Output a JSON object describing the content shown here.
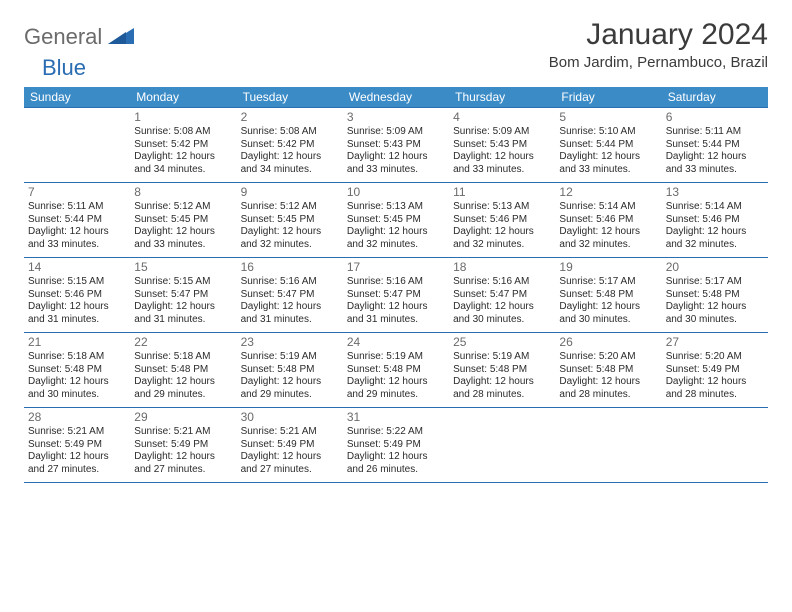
{
  "logo": {
    "text1": "General",
    "text2": "Blue"
  },
  "title": "January 2024",
  "location": "Bom Jardim, Pernambuco, Brazil",
  "colors": {
    "header_bg": "#3b8bc7",
    "header_text": "#ffffff",
    "border": "#2a6db3",
    "body_text": "#2b2b2b",
    "daynum": "#6b6b6b",
    "title": "#3b3b3b",
    "logo_gray": "#6b6b6b",
    "logo_blue": "#2a6db3"
  },
  "weekdays": [
    "Sunday",
    "Monday",
    "Tuesday",
    "Wednesday",
    "Thursday",
    "Friday",
    "Saturday"
  ],
  "weeks": [
    [
      null,
      {
        "n": "1",
        "sr": "Sunrise: 5:08 AM",
        "ss": "Sunset: 5:42 PM",
        "d1": "Daylight: 12 hours",
        "d2": "and 34 minutes."
      },
      {
        "n": "2",
        "sr": "Sunrise: 5:08 AM",
        "ss": "Sunset: 5:42 PM",
        "d1": "Daylight: 12 hours",
        "d2": "and 34 minutes."
      },
      {
        "n": "3",
        "sr": "Sunrise: 5:09 AM",
        "ss": "Sunset: 5:43 PM",
        "d1": "Daylight: 12 hours",
        "d2": "and 33 minutes."
      },
      {
        "n": "4",
        "sr": "Sunrise: 5:09 AM",
        "ss": "Sunset: 5:43 PM",
        "d1": "Daylight: 12 hours",
        "d2": "and 33 minutes."
      },
      {
        "n": "5",
        "sr": "Sunrise: 5:10 AM",
        "ss": "Sunset: 5:44 PM",
        "d1": "Daylight: 12 hours",
        "d2": "and 33 minutes."
      },
      {
        "n": "6",
        "sr": "Sunrise: 5:11 AM",
        "ss": "Sunset: 5:44 PM",
        "d1": "Daylight: 12 hours",
        "d2": "and 33 minutes."
      }
    ],
    [
      {
        "n": "7",
        "sr": "Sunrise: 5:11 AM",
        "ss": "Sunset: 5:44 PM",
        "d1": "Daylight: 12 hours",
        "d2": "and 33 minutes."
      },
      {
        "n": "8",
        "sr": "Sunrise: 5:12 AM",
        "ss": "Sunset: 5:45 PM",
        "d1": "Daylight: 12 hours",
        "d2": "and 33 minutes."
      },
      {
        "n": "9",
        "sr": "Sunrise: 5:12 AM",
        "ss": "Sunset: 5:45 PM",
        "d1": "Daylight: 12 hours",
        "d2": "and 32 minutes."
      },
      {
        "n": "10",
        "sr": "Sunrise: 5:13 AM",
        "ss": "Sunset: 5:45 PM",
        "d1": "Daylight: 12 hours",
        "d2": "and 32 minutes."
      },
      {
        "n": "11",
        "sr": "Sunrise: 5:13 AM",
        "ss": "Sunset: 5:46 PM",
        "d1": "Daylight: 12 hours",
        "d2": "and 32 minutes."
      },
      {
        "n": "12",
        "sr": "Sunrise: 5:14 AM",
        "ss": "Sunset: 5:46 PM",
        "d1": "Daylight: 12 hours",
        "d2": "and 32 minutes."
      },
      {
        "n": "13",
        "sr": "Sunrise: 5:14 AM",
        "ss": "Sunset: 5:46 PM",
        "d1": "Daylight: 12 hours",
        "d2": "and 32 minutes."
      }
    ],
    [
      {
        "n": "14",
        "sr": "Sunrise: 5:15 AM",
        "ss": "Sunset: 5:46 PM",
        "d1": "Daylight: 12 hours",
        "d2": "and 31 minutes."
      },
      {
        "n": "15",
        "sr": "Sunrise: 5:15 AM",
        "ss": "Sunset: 5:47 PM",
        "d1": "Daylight: 12 hours",
        "d2": "and 31 minutes."
      },
      {
        "n": "16",
        "sr": "Sunrise: 5:16 AM",
        "ss": "Sunset: 5:47 PM",
        "d1": "Daylight: 12 hours",
        "d2": "and 31 minutes."
      },
      {
        "n": "17",
        "sr": "Sunrise: 5:16 AM",
        "ss": "Sunset: 5:47 PM",
        "d1": "Daylight: 12 hours",
        "d2": "and 31 minutes."
      },
      {
        "n": "18",
        "sr": "Sunrise: 5:16 AM",
        "ss": "Sunset: 5:47 PM",
        "d1": "Daylight: 12 hours",
        "d2": "and 30 minutes."
      },
      {
        "n": "19",
        "sr": "Sunrise: 5:17 AM",
        "ss": "Sunset: 5:48 PM",
        "d1": "Daylight: 12 hours",
        "d2": "and 30 minutes."
      },
      {
        "n": "20",
        "sr": "Sunrise: 5:17 AM",
        "ss": "Sunset: 5:48 PM",
        "d1": "Daylight: 12 hours",
        "d2": "and 30 minutes."
      }
    ],
    [
      {
        "n": "21",
        "sr": "Sunrise: 5:18 AM",
        "ss": "Sunset: 5:48 PM",
        "d1": "Daylight: 12 hours",
        "d2": "and 30 minutes."
      },
      {
        "n": "22",
        "sr": "Sunrise: 5:18 AM",
        "ss": "Sunset: 5:48 PM",
        "d1": "Daylight: 12 hours",
        "d2": "and 29 minutes."
      },
      {
        "n": "23",
        "sr": "Sunrise: 5:19 AM",
        "ss": "Sunset: 5:48 PM",
        "d1": "Daylight: 12 hours",
        "d2": "and 29 minutes."
      },
      {
        "n": "24",
        "sr": "Sunrise: 5:19 AM",
        "ss": "Sunset: 5:48 PM",
        "d1": "Daylight: 12 hours",
        "d2": "and 29 minutes."
      },
      {
        "n": "25",
        "sr": "Sunrise: 5:19 AM",
        "ss": "Sunset: 5:48 PM",
        "d1": "Daylight: 12 hours",
        "d2": "and 28 minutes."
      },
      {
        "n": "26",
        "sr": "Sunrise: 5:20 AM",
        "ss": "Sunset: 5:48 PM",
        "d1": "Daylight: 12 hours",
        "d2": "and 28 minutes."
      },
      {
        "n": "27",
        "sr": "Sunrise: 5:20 AM",
        "ss": "Sunset: 5:49 PM",
        "d1": "Daylight: 12 hours",
        "d2": "and 28 minutes."
      }
    ],
    [
      {
        "n": "28",
        "sr": "Sunrise: 5:21 AM",
        "ss": "Sunset: 5:49 PM",
        "d1": "Daylight: 12 hours",
        "d2": "and 27 minutes."
      },
      {
        "n": "29",
        "sr": "Sunrise: 5:21 AM",
        "ss": "Sunset: 5:49 PM",
        "d1": "Daylight: 12 hours",
        "d2": "and 27 minutes."
      },
      {
        "n": "30",
        "sr": "Sunrise: 5:21 AM",
        "ss": "Sunset: 5:49 PM",
        "d1": "Daylight: 12 hours",
        "d2": "and 27 minutes."
      },
      {
        "n": "31",
        "sr": "Sunrise: 5:22 AM",
        "ss": "Sunset: 5:49 PM",
        "d1": "Daylight: 12 hours",
        "d2": "and 26 minutes."
      },
      null,
      null,
      null
    ]
  ]
}
